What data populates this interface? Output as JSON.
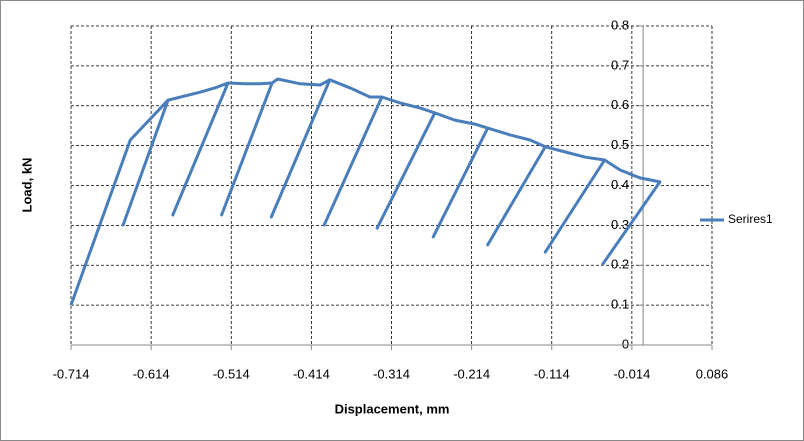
{
  "chart_data": {
    "type": "line",
    "x_label": "Displacement, mm",
    "y_label": "Load, kN",
    "x": [
      -0.714,
      -0.64,
      -0.593,
      -0.649,
      -0.593,
      -0.553,
      -0.534,
      -0.518,
      -0.587,
      -0.518,
      -0.497,
      -0.478,
      -0.463,
      -0.526,
      -0.463,
      -0.456,
      -0.428,
      -0.403,
      -0.391,
      -0.464,
      -0.391,
      -0.366,
      -0.341,
      -0.326,
      -0.398,
      -0.326,
      -0.303,
      -0.278,
      -0.26,
      -0.332,
      -0.26,
      -0.235,
      -0.21,
      -0.194,
      -0.262,
      -0.194,
      -0.166,
      -0.141,
      -0.122,
      -0.194,
      -0.122,
      -0.097,
      -0.072,
      -0.048,
      -0.122,
      -0.048,
      -0.029,
      -0.004,
      0.021,
      -0.051
    ],
    "series": [
      {
        "name": "Serires1",
        "color": "#4a7ebb",
        "values": [
          0.1,
          0.514,
          0.614,
          0.301,
          0.614,
          0.634,
          0.645,
          0.657,
          0.326,
          0.657,
          0.655,
          0.655,
          0.657,
          0.326,
          0.657,
          0.667,
          0.655,
          0.652,
          0.665,
          0.321,
          0.665,
          0.645,
          0.622,
          0.622,
          0.301,
          0.622,
          0.607,
          0.594,
          0.582,
          0.293,
          0.582,
          0.564,
          0.554,
          0.544,
          0.271,
          0.544,
          0.527,
          0.514,
          0.497,
          0.251,
          0.497,
          0.484,
          0.471,
          0.464,
          0.233,
          0.464,
          0.439,
          0.419,
          0.409,
          0.201
        ]
      }
    ],
    "xlim": [
      -0.714,
      0.086
    ],
    "xticks": [
      -0.714,
      -0.614,
      -0.514,
      -0.414,
      -0.314,
      -0.214,
      -0.114,
      -0.014,
      0.086
    ],
    "ylim": [
      0,
      0.8
    ],
    "yticks": [
      0,
      0.1,
      0.2,
      0.3,
      0.4,
      0.5,
      0.6,
      0.7,
      0.8
    ],
    "grid": true,
    "legend": "right"
  }
}
